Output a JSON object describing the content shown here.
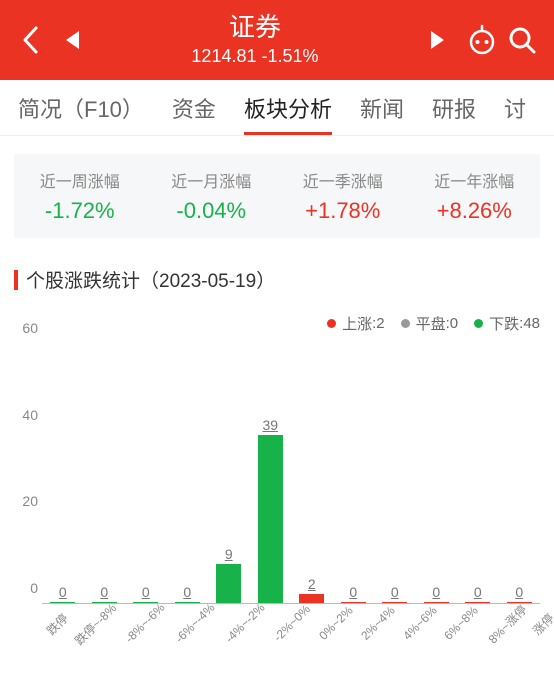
{
  "colors": {
    "primary": "#eb3323",
    "green": "#18b24b",
    "grey": "#999999",
    "text": "#333333",
    "muted": "#888888"
  },
  "header": {
    "title": "证券",
    "price": "1214.81",
    "change": "-1.51%"
  },
  "tabs": {
    "items": [
      {
        "label": "简况（F10）",
        "active": false
      },
      {
        "label": "资金",
        "active": false
      },
      {
        "label": "板块分析",
        "active": true
      },
      {
        "label": "新闻",
        "active": false
      },
      {
        "label": "研报",
        "active": false
      },
      {
        "label": "讨",
        "active": false
      }
    ]
  },
  "stats": [
    {
      "label": "近一周涨幅",
      "value": "-1.72%",
      "tone": "green"
    },
    {
      "label": "近一月涨幅",
      "value": "-0.04%",
      "tone": "green"
    },
    {
      "label": "近一季涨幅",
      "value": "+1.78%",
      "tone": "red"
    },
    {
      "label": "近一年涨幅",
      "value": "+8.26%",
      "tone": "red"
    }
  ],
  "section": {
    "title": "个股涨跌统计（2023-05-19）"
  },
  "legend": {
    "up": {
      "label": "上涨",
      "count": 2,
      "color": "#eb3323"
    },
    "flat": {
      "label": "平盘",
      "count": 0,
      "color": "#999999"
    },
    "down": {
      "label": "下跌",
      "count": 48,
      "color": "#18b24b"
    }
  },
  "chart": {
    "type": "bar",
    "ylim": [
      0,
      60
    ],
    "yticks": [
      0,
      20,
      40,
      60
    ],
    "bar_width_pct": 60,
    "value_label_fontsize": 14,
    "axis_label_fontsize": 12,
    "grid": false,
    "categories": [
      "跌停",
      "跌停~-8%",
      "-8%~-6%",
      "-6%~-4%",
      "-4%~-2%",
      "-2%~0%",
      "0%~2%",
      "2%~4%",
      "4%~6%",
      "6%~8%",
      "8%~涨停",
      "涨停"
    ],
    "values": [
      0,
      0,
      0,
      0,
      9,
      39,
      2,
      0,
      0,
      0,
      0,
      0
    ],
    "bar_colors": [
      "#18b24b",
      "#18b24b",
      "#18b24b",
      "#18b24b",
      "#18b24b",
      "#18b24b",
      "#eb3323",
      "#eb3323",
      "#eb3323",
      "#eb3323",
      "#eb3323",
      "#eb3323"
    ]
  }
}
